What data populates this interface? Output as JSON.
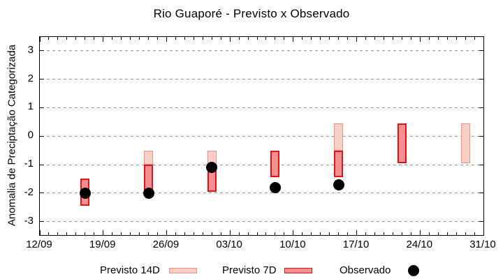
{
  "chart_data": {
    "type": "bar",
    "subtype": "range-bars-with-scatter",
    "title": "Rio Guaporé - Previsto x Observado",
    "ylabel": "Anomalia de Preciptação Categorizada",
    "xlabel": "",
    "ylim": [
      -3.5,
      3.5
    ],
    "y_ticks": [
      3,
      2,
      1,
      0,
      -1,
      -2,
      -3
    ],
    "grid": "horizontal-dashed",
    "x_total_days": 49,
    "x_major_tick_every_days": 7,
    "x_minor_tick_every_days": 1,
    "x_tick_labels": [
      "12/09",
      "19/09",
      "26/09",
      "03/10",
      "10/10",
      "17/10",
      "24/10",
      "31/10"
    ],
    "x_tick_days": [
      0,
      7,
      14,
      21,
      28,
      35,
      42,
      49
    ],
    "colors": {
      "previsto14d_fill": "#f9cfc8",
      "previsto14d_border": "#f0907e",
      "previsto7d_fill": "#f49092",
      "previsto7d_border": "#de1416",
      "observado": "#000000",
      "gridline": "#969696",
      "axis": "#000000"
    },
    "series": [
      {
        "name": "Previsto 14D",
        "type": "range-bar",
        "points": [
          {
            "date": "24/09",
            "day": 12,
            "hi": -0.5,
            "lo": -1.0
          },
          {
            "date": "01/10",
            "day": 19,
            "hi": -0.5,
            "lo": -1.0
          },
          {
            "date": "15/10",
            "day": 33,
            "hi": 0.45,
            "lo": -0.5
          },
          {
            "date": "29/10",
            "day": 47,
            "hi": 0.45,
            "lo": -0.95
          }
        ]
      },
      {
        "name": "Previsto 7D",
        "type": "range-bar",
        "points": [
          {
            "date": "17/09",
            "day": 5,
            "hi": -1.5,
            "lo": -2.45
          },
          {
            "date": "24/09",
            "day": 12,
            "hi": -1.0,
            "lo": -1.9
          },
          {
            "date": "01/10",
            "day": 19,
            "hi": -1.0,
            "lo": -1.95
          },
          {
            "date": "08/10",
            "day": 26,
            "hi": -0.5,
            "lo": -1.45
          },
          {
            "date": "15/10",
            "day": 33,
            "hi": -0.5,
            "lo": -1.45
          },
          {
            "date": "22/10",
            "day": 40,
            "hi": 0.45,
            "lo": -0.95
          }
        ]
      },
      {
        "name": "Observado",
        "type": "scatter",
        "points": [
          {
            "date": "17/09",
            "day": 5,
            "value": -2.0
          },
          {
            "date": "24/09",
            "day": 12,
            "value": -2.0
          },
          {
            "date": "01/10",
            "day": 19,
            "value": -1.1
          },
          {
            "date": "08/10",
            "day": 26,
            "value": -1.8
          },
          {
            "date": "15/10",
            "day": 33,
            "value": -1.7
          }
        ]
      }
    ],
    "legend": {
      "position": "bottom",
      "items": [
        {
          "label": "Previsto 14D",
          "swatch": "range-bar-14d"
        },
        {
          "label": "Previsto 7D",
          "swatch": "range-bar-7d"
        },
        {
          "label": "Observado",
          "swatch": "black-dot"
        }
      ]
    }
  }
}
